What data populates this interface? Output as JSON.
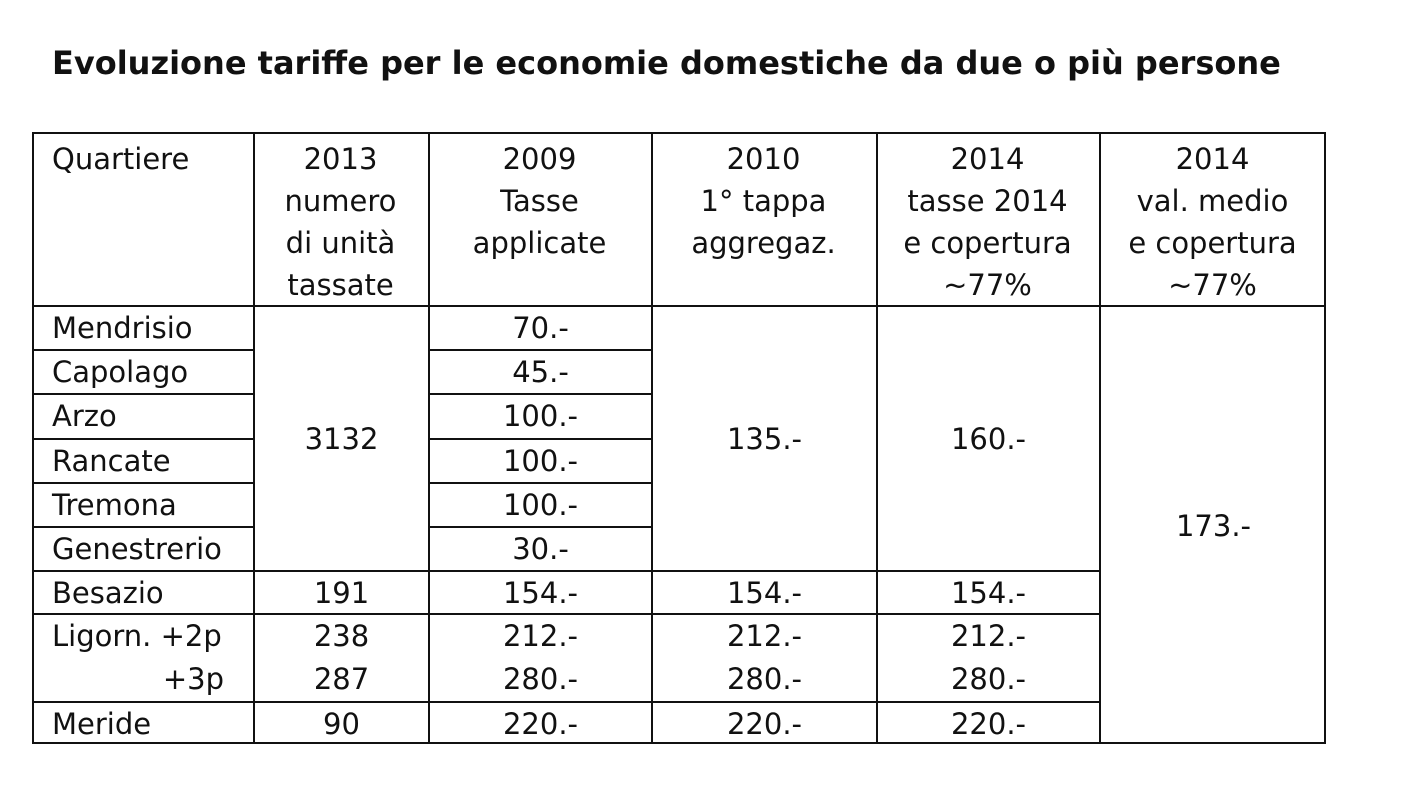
{
  "title": "Evoluzione tariffe per le economie domestiche da due o più persone",
  "table": {
    "headers": {
      "quartiere": "Quartiere",
      "col2013": [
        "2013",
        "numero",
        "di unità",
        "tassate"
      ],
      "col2009": [
        "2009",
        "Tasse",
        "applicate"
      ],
      "col2010": [
        "2010",
        "1° tappa",
        "aggregaz."
      ],
      "col2014a": [
        "2014",
        "tasse 2014",
        "e copertura",
        "~77%"
      ],
      "col2014b": [
        "2014",
        "val. medio",
        "e copertura",
        "~77%"
      ]
    },
    "rows": {
      "mendrisio": {
        "name": "Mendrisio",
        "tax2009": "70.-"
      },
      "capolago": {
        "name": "Capolago",
        "tax2009": "45.-"
      },
      "arzo": {
        "name": "Arzo",
        "tax2009": "100.-"
      },
      "rancate": {
        "name": "Rancate",
        "tax2009": "100.-"
      },
      "tremona": {
        "name": "Tremona",
        "tax2009": "100.-"
      },
      "genestrerio": {
        "name": "Genestrerio",
        "tax2009": "30.-"
      },
      "besazio": {
        "name": "Besazio",
        "units": "191",
        "tax2009": "154.-",
        "tax2010": "154.-",
        "tax2014": "154.-"
      },
      "ligornetto": {
        "name": "Ligorn. +2p",
        "name2": "+3p",
        "units": "238",
        "units2": "287",
        "tax2009": "212.-",
        "tax2009b": "280.-",
        "tax2010": "212.-",
        "tax2010b": "280.-",
        "tax2014": "212.-",
        "tax2014b": "280.-"
      },
      "meride": {
        "name": "Meride",
        "units": "90",
        "tax2009": "220.-",
        "tax2010": "220.-",
        "tax2014": "220.-"
      }
    },
    "merged": {
      "units_group": "3132",
      "tax2010_group": "135.-",
      "tax2014_group": "160.-",
      "avg2014_all": "173.-"
    }
  }
}
